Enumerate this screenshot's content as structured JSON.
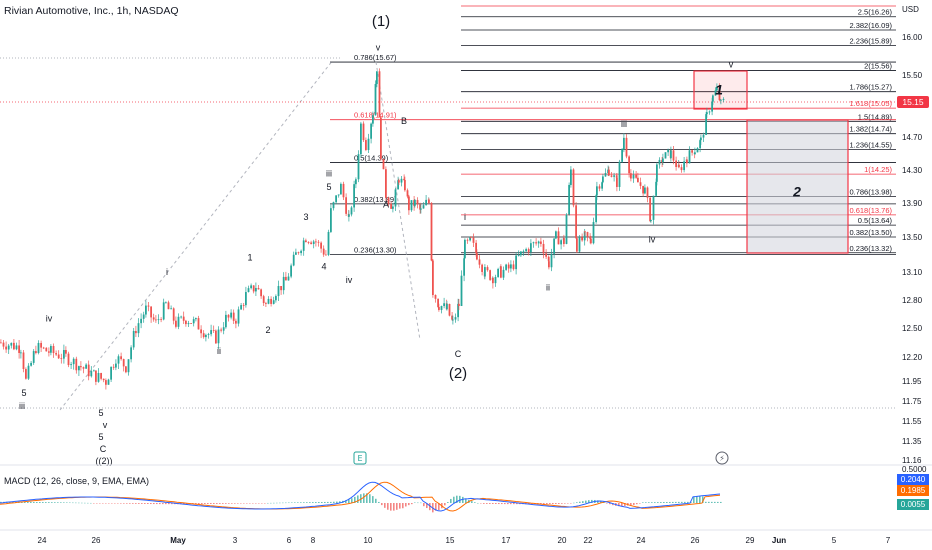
{
  "header": {
    "title": "Rivian Automotive, Inc., 1h, NASDAQ",
    "currency": "USD"
  },
  "colors": {
    "up": "#26a69a",
    "down": "#ef5350",
    "fib_black": "#131722",
    "fib_red": "#f23645",
    "price_badge": "#f23645",
    "macd": "#2962ff",
    "signal": "#ff6d00"
  },
  "chart_data": {
    "type": "candlestick",
    "y_axis": {
      "ticks": [
        "16.00",
        "15.50",
        "15.10",
        "14.70",
        "14.30",
        "13.90",
        "13.50",
        "13.10",
        "12.80",
        "12.50",
        "12.20",
        "11.95",
        "11.75",
        "11.55",
        "11.35",
        "11.16"
      ]
    },
    "x_axis": {
      "ticks": [
        "24",
        "26",
        "May",
        "3",
        "6",
        "8",
        "10",
        "15",
        "17",
        "20",
        "22",
        "24",
        "26",
        "29",
        "Jun",
        "5",
        "7"
      ]
    },
    "last_price": "15.15",
    "path": [
      [
        0,
        12.35
      ],
      [
        20,
        12.3
      ],
      [
        25,
        11.95
      ],
      [
        35,
        12.3
      ],
      [
        50,
        12.25
      ],
      [
        65,
        12.2
      ],
      [
        80,
        12.1
      ],
      [
        95,
        12.0
      ],
      [
        105,
        11.95
      ],
      [
        115,
        12.2
      ],
      [
        125,
        12.1
      ],
      [
        135,
        12.5
      ],
      [
        145,
        12.7
      ],
      [
        155,
        12.55
      ],
      [
        165,
        12.75
      ],
      [
        175,
        12.55
      ],
      [
        185,
        12.6
      ],
      [
        195,
        12.55
      ],
      [
        205,
        12.45
      ],
      [
        215,
        12.4
      ],
      [
        225,
        12.6
      ],
      [
        235,
        12.6
      ],
      [
        245,
        12.85
      ],
      [
        255,
        12.95
      ],
      [
        265,
        12.75
      ],
      [
        275,
        12.9
      ],
      [
        285,
        13.0
      ],
      [
        295,
        13.3
      ],
      [
        305,
        13.5
      ],
      [
        315,
        13.45
      ],
      [
        325,
        13.3
      ],
      [
        330,
        13.8
      ],
      [
        340,
        14.1
      ],
      [
        348,
        13.7
      ],
      [
        355,
        14.2
      ],
      [
        360,
        14.85
      ],
      [
        365,
        14.6
      ],
      [
        372,
        15.0
      ],
      [
        376,
        15.6
      ],
      [
        380,
        14.5
      ],
      [
        385,
        14.0
      ],
      [
        392,
        13.85
      ],
      [
        398,
        14.2
      ],
      [
        404,
        14.1
      ],
      [
        408,
        13.85
      ],
      [
        414,
        13.9
      ],
      [
        420,
        13.8
      ],
      [
        428,
        13.95
      ],
      [
        432,
        12.9
      ],
      [
        438,
        12.75
      ],
      [
        446,
        12.7
      ],
      [
        452,
        12.55
      ],
      [
        458,
        12.75
      ],
      [
        464,
        13.4
      ],
      [
        470,
        13.45
      ],
      [
        476,
        13.3
      ],
      [
        484,
        13.1
      ],
      [
        492,
        13.05
      ],
      [
        500,
        13.1
      ],
      [
        510,
        13.15
      ],
      [
        520,
        13.3
      ],
      [
        530,
        13.4
      ],
      [
        540,
        13.45
      ],
      [
        548,
        13.2
      ],
      [
        555,
        13.5
      ],
      [
        563,
        13.45
      ],
      [
        570,
        14.3
      ],
      [
        576,
        13.4
      ],
      [
        584,
        13.5
      ],
      [
        590,
        13.45
      ],
      [
        596,
        14.1
      ],
      [
        602,
        14.2
      ],
      [
        608,
        14.3
      ],
      [
        616,
        14.15
      ],
      [
        623,
        14.7
      ],
      [
        630,
        14.2
      ],
      [
        637,
        14.15
      ],
      [
        644,
        14.05
      ],
      [
        650,
        13.7
      ],
      [
        656,
        14.3
      ],
      [
        662,
        14.45
      ],
      [
        670,
        14.5
      ],
      [
        678,
        14.3
      ],
      [
        686,
        14.45
      ],
      [
        694,
        14.55
      ],
      [
        700,
        14.65
      ],
      [
        706,
        14.95
      ],
      [
        712,
        15.2
      ],
      [
        716,
        15.3
      ],
      [
        720,
        15.1
      ],
      [
        724,
        15.15
      ]
    ],
    "fib_levels_right": [
      {
        "label": "2.5(16.26)",
        "price": 16.26,
        "color": "black"
      },
      {
        "label": "2.382(16.09)",
        "price": 16.09,
        "color": "black"
      },
      {
        "label": "2.236(15.89)",
        "price": 15.89,
        "color": "black"
      },
      {
        "label": "2(15.56)",
        "price": 15.56,
        "color": "black"
      },
      {
        "label": "1.786(15.27)",
        "price": 15.27,
        "color": "black"
      },
      {
        "label": "1.618(15.05)",
        "price": 15.05,
        "color": "red"
      },
      {
        "label": "1.5(14.89)",
        "price": 14.89,
        "color": "black"
      },
      {
        "label": "1.382(14.74)",
        "price": 14.74,
        "color": "black"
      },
      {
        "label": "1.236(14.55)",
        "price": 14.55,
        "color": "black"
      },
      {
        "label": "1(14.25)",
        "price": 14.25,
        "color": "red"
      },
      {
        "label": "0.786(13.98)",
        "price": 13.98,
        "color": "black"
      },
      {
        "label": "0.618(13.76)",
        "price": 13.76,
        "color": "red"
      },
      {
        "label": "0.5(13.64)",
        "price": 13.64,
        "color": "black"
      },
      {
        "label": "0.382(13.50)",
        "price": 13.5,
        "color": "black"
      },
      {
        "label": "0.236(13.32)",
        "price": 13.32,
        "color": "black"
      }
    ],
    "fib_levels_left": [
      {
        "label": "0.786(15.67)",
        "price": 15.67,
        "color": "black"
      },
      {
        "label": "0.618(14.91)",
        "price": 14.91,
        "color": "red"
      },
      {
        "label": "0.5(14.39)",
        "price": 14.39,
        "color": "black"
      },
      {
        "label": "0.382(13.89)",
        "price": 13.89,
        "color": "black"
      },
      {
        "label": "0.236(13.30)",
        "price": 13.3,
        "color": "black"
      }
    ],
    "wave_labels": [
      {
        "text": "(1)",
        "x": 381,
        "price": 16.14,
        "big": true
      },
      {
        "text": "v",
        "x": 378,
        "price": 15.82
      },
      {
        "text": "B",
        "x": 404,
        "price": 14.86
      },
      {
        "text": "A",
        "x": 386,
        "price": 13.85
      },
      {
        "text": "C",
        "x": 458,
        "price": 12.2
      },
      {
        "text": "(2)",
        "x": 458,
        "price": 11.98,
        "big": true
      },
      {
        "text": "iii",
        "x": 329,
        "price": 14.22
      },
      {
        "text": "5",
        "x": 329,
        "price": 14.06
      },
      {
        "text": "iv",
        "x": 349,
        "price": 12.98
      },
      {
        "text": "3",
        "x": 306,
        "price": 13.7
      },
      {
        "text": "4",
        "x": 324,
        "price": 13.13
      },
      {
        "text": "1",
        "x": 250,
        "price": 13.23
      },
      {
        "text": "2",
        "x": 268,
        "price": 12.45
      },
      {
        "text": "i",
        "x": 167,
        "price": 13.07
      },
      {
        "text": "ii",
        "x": 219,
        "price": 12.23
      },
      {
        "text": "iv",
        "x": 49,
        "price": 12.57
      },
      {
        "text": "5",
        "x": 24,
        "price": 11.8
      },
      {
        "text": "iii",
        "x": 22,
        "price": 11.67
      },
      {
        "text": "5",
        "x": 101,
        "price": 11.6
      },
      {
        "text": "v",
        "x": 105,
        "price": 11.48
      },
      {
        "text": "5",
        "x": 101,
        "price": 11.36
      },
      {
        "text": "C",
        "x": 103,
        "price": 11.24
      },
      {
        "text": "((2))",
        "x": 104,
        "price": 11.12
      },
      {
        "text": "i",
        "x": 465,
        "price": 13.7
      },
      {
        "text": "ii",
        "x": 548,
        "price": 12.9
      },
      {
        "text": "iii",
        "x": 624,
        "price": 14.82
      },
      {
        "text": "iv",
        "x": 652,
        "price": 13.44
      },
      {
        "text": "v",
        "x": 731,
        "price": 15.6
      },
      {
        "text": "1",
        "x": 719,
        "price": 15.23,
        "big_italic": true
      },
      {
        "text": "2",
        "x": 797,
        "price": 13.98,
        "big_italic": true
      }
    ],
    "events": [
      {
        "icon": "E",
        "x": 360
      },
      {
        "icon": "⚡",
        "x": 722
      }
    ]
  },
  "macd": {
    "label": "MACD (12, 26, close, 9, EMA, EMA)",
    "macd_value": "0.2040",
    "signal_value": "0.1985",
    "hist_value": "0.0055",
    "axis_top": "0.5000"
  }
}
